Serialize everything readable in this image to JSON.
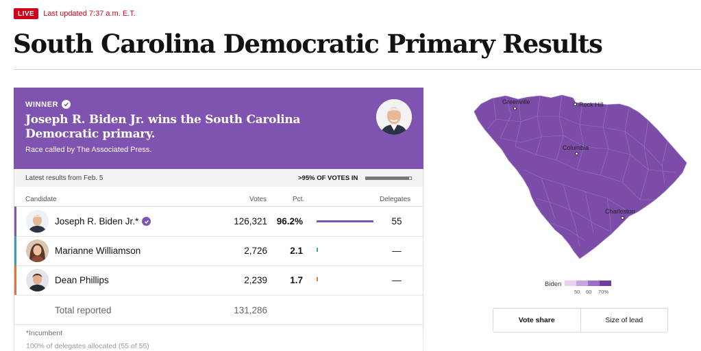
{
  "live": {
    "badge": "LIVE",
    "updated": "Last updated 7:37 a.m. E.T."
  },
  "title": "South Carolina Democratic Primary Results",
  "winner": {
    "label": "WINNER",
    "headline": "Joseph R. Biden Jr. wins the South Carolina Democratic primary.",
    "source": "Race called by The Associated Press."
  },
  "latest": {
    "text": "Latest results from Feb. 5",
    "votes_in_label": ">95% OF VOTES IN",
    "votes_in_fraction": 0.95
  },
  "columns": {
    "candidate": "Candidate",
    "votes": "Votes",
    "pct": "Pct.",
    "delegates": "Delegates"
  },
  "candidates": [
    {
      "name": "Joseph R. Biden Jr.*",
      "votes": "126,321",
      "pct": "96.2%",
      "pct_value": 96.2,
      "delegates": "55",
      "color": "#7f54b0",
      "winner": true
    },
    {
      "name": "Marianne Williamson",
      "votes": "2,726",
      "pct": "2.1",
      "pct_value": 2.1,
      "delegates": "—",
      "color": "#3aa0a6",
      "winner": false
    },
    {
      "name": "Dean Phillips",
      "votes": "2,239",
      "pct": "1.7",
      "pct_value": 1.7,
      "delegates": "—",
      "color": "#e0703c",
      "winner": false
    }
  ],
  "total": {
    "label": "Total reported",
    "votes": "131,286"
  },
  "footnotes": {
    "incumbent": "*Incumbent",
    "delegates": "100% of delegates allocated (55 of 55)"
  },
  "map": {
    "cities": [
      "Greenville",
      "Rock Hill",
      "Columbia",
      "Charleston"
    ],
    "fill_color": "#7b4ca8",
    "legend": {
      "label": "Biden",
      "ticks": [
        "50",
        "60",
        "70%"
      ],
      "colors": [
        "#e7d3f3",
        "#c8a6e0",
        "#9d6ec9",
        "#6f3fa0"
      ]
    }
  },
  "toggle": {
    "active": "Vote share",
    "inactive": "Size of lead"
  }
}
